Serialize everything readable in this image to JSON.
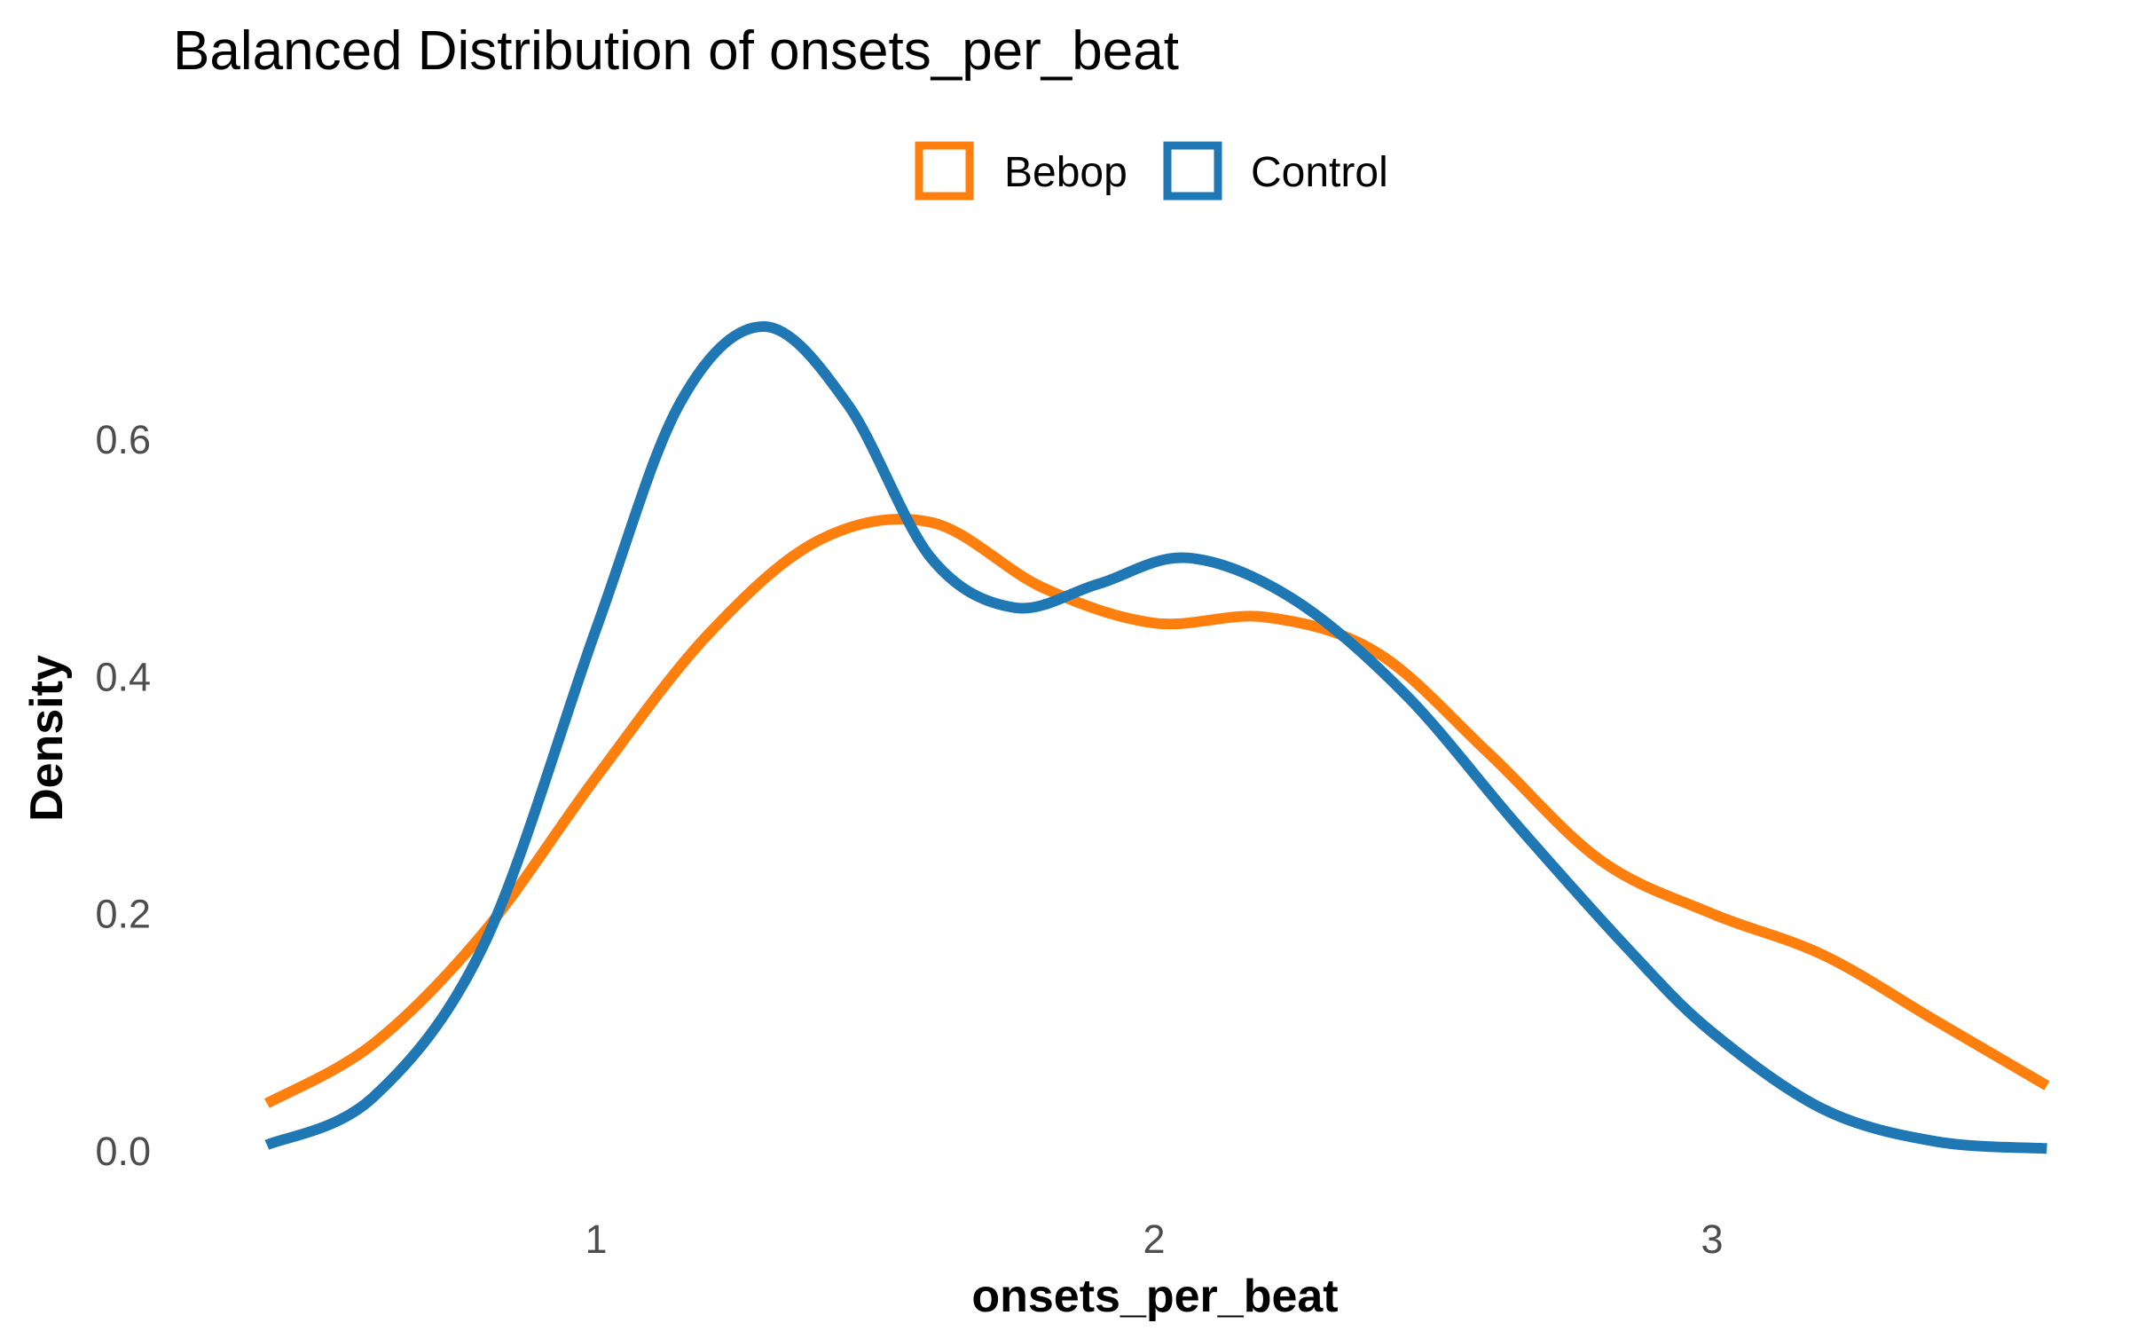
{
  "chart_data": {
    "type": "line",
    "title": "Balanced Distribution of onsets_per_beat",
    "xlabel": "onsets_per_beat",
    "ylabel": "Density",
    "xlim": [
      0.4,
      3.6
    ],
    "ylim": [
      0.0,
      0.72
    ],
    "x_ticks": [
      1,
      2,
      3
    ],
    "x_tick_labels": [
      "1",
      "2",
      "3"
    ],
    "y_ticks": [
      0.0,
      0.2,
      0.4,
      0.6
    ],
    "y_tick_labels": [
      "0.0",
      "0.2",
      "0.4",
      "0.6"
    ],
    "grid": false,
    "legend": {
      "position": "top",
      "entries": [
        "Bebop",
        "Control"
      ]
    },
    "series": [
      {
        "name": "Bebop",
        "color": "#ff7f0e",
        "points": [
          [
            0.41,
            0.04
          ],
          [
            0.6,
            0.09
          ],
          [
            0.8,
            0.185
          ],
          [
            1.0,
            0.315
          ],
          [
            1.2,
            0.435
          ],
          [
            1.4,
            0.515
          ],
          [
            1.6,
            0.53
          ],
          [
            1.8,
            0.475
          ],
          [
            2.0,
            0.445
          ],
          [
            2.2,
            0.45
          ],
          [
            2.4,
            0.42
          ],
          [
            2.6,
            0.335
          ],
          [
            2.8,
            0.245
          ],
          [
            3.0,
            0.2
          ],
          [
            3.2,
            0.165
          ],
          [
            3.4,
            0.11
          ],
          [
            3.6,
            0.055
          ]
        ]
      },
      {
        "name": "Control",
        "color": "#1f77b4",
        "points": [
          [
            0.41,
            0.005
          ],
          [
            0.6,
            0.045
          ],
          [
            0.8,
            0.175
          ],
          [
            1.0,
            0.44
          ],
          [
            1.15,
            0.63
          ],
          [
            1.3,
            0.695
          ],
          [
            1.45,
            0.63
          ],
          [
            1.6,
            0.5
          ],
          [
            1.75,
            0.458
          ],
          [
            1.9,
            0.478
          ],
          [
            2.06,
            0.5
          ],
          [
            2.25,
            0.465
          ],
          [
            2.45,
            0.385
          ],
          [
            2.65,
            0.275
          ],
          [
            2.85,
            0.17
          ],
          [
            3.0,
            0.1
          ],
          [
            3.2,
            0.035
          ],
          [
            3.4,
            0.008
          ],
          [
            3.6,
            0.002
          ]
        ]
      }
    ]
  }
}
